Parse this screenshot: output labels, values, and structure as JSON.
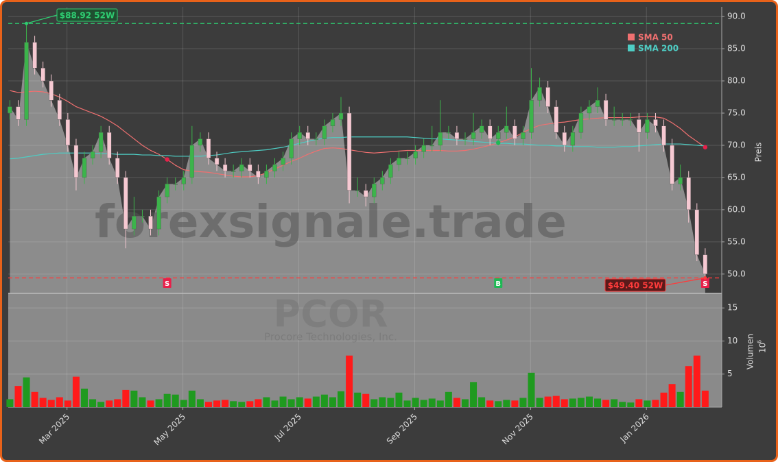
{
  "chart_data": {
    "type": "candlestick",
    "watermark": "forexsignale.trade",
    "ticker": "PCOR",
    "company": "Procore Technologies, Inc.",
    "y_axis_label": "Preis",
    "volume_axis_label": "Volumen",
    "volume_scale_base": "10",
    "volume_scale_exp": "6",
    "xlim": [
      -0.2,
      86
    ],
    "xticks": [
      {
        "value": 6.9,
        "label": "Mar 2025"
      },
      {
        "value": 20.9,
        "label": "May 2025"
      },
      {
        "value": 34.9,
        "label": "Jul 2025"
      },
      {
        "value": 48.9,
        "label": "Sep 2025"
      },
      {
        "value": 62.9,
        "label": "Nov 2025"
      },
      {
        "value": 76.9,
        "label": "Jan 2026"
      }
    ],
    "ylim": [
      47,
      91.5
    ],
    "yticks": [
      {
        "value": 50,
        "label": "50.0"
      },
      {
        "value": 55,
        "label": "55.0"
      },
      {
        "value": 60,
        "label": "60.0"
      },
      {
        "value": 65,
        "label": "65.0"
      },
      {
        "value": 70,
        "label": "70.0"
      },
      {
        "value": 75,
        "label": "75.0"
      },
      {
        "value": 80,
        "label": "80.0"
      },
      {
        "value": 85,
        "label": "85.0"
      },
      {
        "value": 90,
        "label": "90.0"
      }
    ],
    "volume_ylim": [
      0,
      17.2
    ],
    "volume_yticks": [
      5,
      10,
      15
    ],
    "grid": true,
    "up_color": "#3cb44b",
    "down_color": "#f6c9d2",
    "area_color": "#8c8c8c",
    "volume_up_color": "#1f9a1f",
    "volume_down_color": "#ff1a1a",
    "open": [
      75,
      76,
      74,
      86,
      82,
      80,
      77,
      74,
      70,
      65,
      68,
      69,
      72,
      68,
      65,
      57,
      59,
      59,
      57,
      62,
      64,
      64,
      65,
      70,
      71,
      68,
      67,
      66,
      66,
      67,
      66,
      65,
      66,
      67,
      68,
      71,
      72,
      71,
      71,
      73,
      74,
      75,
      63,
      63,
      62,
      64,
      65,
      67,
      68,
      68,
      69,
      70,
      70,
      72,
      72,
      71,
      71,
      72,
      73,
      71,
      72,
      73,
      71,
      72,
      77,
      79,
      76,
      72,
      70,
      72,
      75,
      76,
      77,
      74,
      74,
      74,
      74,
      72,
      74,
      73,
      70,
      64,
      65,
      60,
      53
    ],
    "high": [
      77,
      77,
      88.92,
      87,
      83,
      81,
      78,
      75,
      71,
      69,
      70,
      73,
      73,
      69,
      66,
      62,
      60,
      60,
      63,
      65,
      65,
      66,
      73,
      72,
      72,
      69,
      68,
      67,
      68,
      68,
      67,
      67,
      68,
      69,
      72,
      73,
      73,
      72,
      74,
      75,
      77.5,
      76,
      65,
      64,
      65,
      66,
      68,
      69,
      69,
      70,
      71,
      73,
      77,
      73,
      73,
      72,
      75,
      74,
      74,
      73,
      76,
      74,
      73,
      82,
      80.5,
      80,
      77,
      73,
      73,
      76,
      77,
      79,
      78,
      76,
      75,
      75,
      75,
      75,
      75,
      74,
      71,
      67,
      66,
      61,
      54
    ],
    "low": [
      74,
      73,
      73,
      81,
      79,
      76,
      73,
      69,
      63,
      64,
      67,
      68,
      67,
      64,
      54,
      56,
      58,
      56,
      56,
      61,
      63,
      63,
      64,
      69,
      67,
      66,
      65,
      65,
      65,
      65,
      64,
      64,
      65,
      66,
      67,
      70,
      70,
      70,
      70,
      72,
      73,
      61,
      62,
      60.5,
      61,
      63,
      64,
      66,
      67,
      67,
      68,
      69,
      69,
      71,
      70,
      70,
      70,
      71,
      70,
      70,
      71,
      70,
      70,
      71,
      76,
      75,
      71,
      69,
      69,
      71,
      74,
      75,
      73,
      73,
      73,
      73,
      69,
      71,
      72,
      69,
      63,
      63,
      58,
      52,
      49.4
    ],
    "close": [
      76,
      74,
      86,
      82,
      80,
      77,
      74,
      70,
      65,
      68,
      69,
      72,
      68,
      65,
      57,
      59,
      59,
      57,
      62,
      64,
      64,
      65,
      70,
      71,
      68,
      67,
      66,
      66,
      67,
      66,
      65,
      66,
      67,
      68,
      71,
      72,
      71,
      71,
      73,
      74,
      75,
      63,
      63,
      62,
      64,
      65,
      67,
      68,
      68,
      69,
      70,
      70,
      72,
      72,
      71,
      71,
      72,
      73,
      71,
      72,
      73,
      71,
      72,
      77,
      79,
      76,
      72,
      70,
      72,
      75,
      76,
      77,
      74,
      74,
      74,
      74,
      72,
      74,
      73,
      70,
      64,
      65,
      60,
      53,
      50
    ],
    "volume": [
      1.2,
      3.2,
      4.5,
      2.3,
      1.4,
      1.1,
      1.5,
      1.0,
      4.6,
      2.8,
      1.2,
      0.8,
      1.0,
      1.2,
      2.6,
      2.5,
      1.5,
      1.0,
      1.2,
      2.0,
      1.9,
      1.1,
      2.5,
      1.2,
      0.8,
      1.0,
      1.1,
      0.9,
      0.8,
      0.9,
      1.2,
      1.5,
      1.0,
      1.6,
      1.2,
      1.5,
      1.3,
      1.6,
      1.9,
      1.5,
      2.4,
      7.8,
      2.2,
      2.0,
      1.2,
      1.5,
      1.4,
      2.2,
      1.0,
      1.4,
      1.1,
      1.3,
      1.0,
      2.3,
      1.4,
      1.2,
      3.8,
      1.5,
      1.0,
      0.9,
      1.1,
      1.0,
      1.4,
      5.2,
      1.4,
      1.6,
      1.7,
      1.2,
      1.3,
      1.4,
      1.6,
      1.3,
      1.1,
      1.2,
      0.8,
      0.7,
      1.2,
      1.0,
      1.1,
      2.2,
      3.5,
      2.3,
      6.2,
      7.8,
      2.5
    ],
    "series": [
      {
        "name": "SMA 50",
        "color": "#f07070",
        "values": [
          78.5,
          78.2,
          78.3,
          78.4,
          78.3,
          78.0,
          77.5,
          76.8,
          76.0,
          75.5,
          75.0,
          74.5,
          73.8,
          73.0,
          72.0,
          71.0,
          70.0,
          69.2,
          68.6,
          67.8,
          66.9,
          66.2,
          66.0,
          65.9,
          65.8,
          65.6,
          65.4,
          65.2,
          65.1,
          65.1,
          65.3,
          65.7,
          66.3,
          66.9,
          67.5,
          68.0,
          68.6,
          69.1,
          69.5,
          69.6,
          69.5,
          69.3,
          69.1,
          68.9,
          68.8,
          68.9,
          69.0,
          69.1,
          69.2,
          69.2,
          69.2,
          69.2,
          69.2,
          69.1,
          69.1,
          69.2,
          69.4,
          69.7,
          70.0,
          70.4,
          70.8,
          71.3,
          72.0,
          72.6,
          73.1,
          73.3,
          73.5,
          73.6,
          73.8,
          74.0,
          74.1,
          74.2,
          74.3,
          74.3,
          74.3,
          74.3,
          74.4,
          74.5,
          74.4,
          74.2,
          73.5,
          72.6,
          71.5,
          70.6,
          69.7
        ]
      },
      {
        "name": "SMA 200",
        "color": "#4ecdc4",
        "values": [
          67.9,
          68.0,
          68.2,
          68.4,
          68.6,
          68.7,
          68.8,
          68.8,
          68.8,
          68.8,
          68.8,
          68.7,
          68.7,
          68.6,
          68.6,
          68.6,
          68.5,
          68.5,
          68.4,
          68.4,
          68.3,
          68.3,
          68.3,
          68.3,
          68.4,
          68.5,
          68.7,
          68.9,
          69.0,
          69.1,
          69.2,
          69.3,
          69.5,
          69.7,
          70.0,
          70.3,
          70.6,
          70.9,
          71.1,
          71.2,
          71.2,
          71.3,
          71.3,
          71.3,
          71.3,
          71.3,
          71.3,
          71.3,
          71.3,
          71.2,
          71.1,
          71.0,
          71.0,
          70.9,
          70.8,
          70.7,
          70.6,
          70.5,
          70.4,
          70.3,
          70.3,
          70.2,
          70.2,
          70.1,
          70.0,
          70.0,
          69.9,
          69.9,
          69.8,
          69.8,
          69.8,
          69.7,
          69.7,
          69.7,
          69.8,
          69.8,
          69.9,
          70.0,
          70.1,
          70.2,
          70.2,
          70.2,
          70.1,
          70.0,
          69.9
        ]
      }
    ],
    "high_52w": {
      "value": 88.92,
      "label": "$88.92 52W",
      "index": 2,
      "color": "#2ecc71"
    },
    "low_52w": {
      "value": 49.4,
      "label": "$49.40 52W",
      "index": 84,
      "color": "#ff3b3b"
    },
    "signals": [
      {
        "label": "S",
        "index": 19,
        "color": "#e8204a"
      },
      {
        "label": "B",
        "index": 59,
        "color": "#1db954"
      },
      {
        "label": "S",
        "index": 84,
        "color": "#e8204a"
      }
    ]
  }
}
